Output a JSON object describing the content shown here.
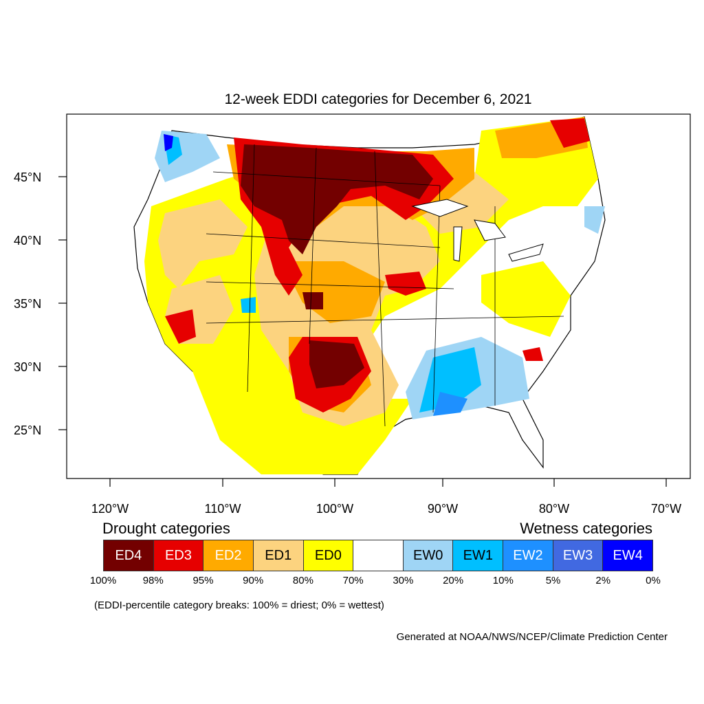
{
  "title": "12-week EDDI categories for December 6, 2021",
  "map": {
    "lat_labels": [
      "45°N",
      "40°N",
      "35°N",
      "30°N",
      "25°N"
    ],
    "lon_labels": [
      "120°W",
      "110°W",
      "100°W",
      "90°W",
      "80°W",
      "70°W"
    ],
    "region": "Contiguous United States"
  },
  "legend": {
    "drought_title": "Drought categories",
    "wetness_title": "Wetness categories",
    "categories": [
      {
        "label": "ED4",
        "color": "#730000",
        "text_color": "#ffffff"
      },
      {
        "label": "ED3",
        "color": "#e60000",
        "text_color": "#ffffff"
      },
      {
        "label": "ED2",
        "color": "#ffaa00",
        "text_color": "#ffffff"
      },
      {
        "label": "ED1",
        "color": "#fcd37f",
        "text_color": "#000000"
      },
      {
        "label": "ED0",
        "color": "#ffff00",
        "text_color": "#000000"
      },
      {
        "label": "",
        "color": "#ffffff",
        "text_color": "#000000"
      },
      {
        "label": "EW0",
        "color": "#9fd5f5",
        "text_color": "#000000"
      },
      {
        "label": "EW1",
        "color": "#00bfff",
        "text_color": "#000000"
      },
      {
        "label": "EW2",
        "color": "#1e90ff",
        "text_color": "#ffffff"
      },
      {
        "label": "EW3",
        "color": "#4169e1",
        "text_color": "#ffffff"
      },
      {
        "label": "EW4",
        "color": "#0000ff",
        "text_color": "#ffffff"
      }
    ],
    "breaks": [
      "100%",
      "98%",
      "95%",
      "90%",
      "80%",
      "70%",
      "30%",
      "20%",
      "10%",
      "5%",
      "2%",
      "0%"
    ]
  },
  "note": "(EDDI-percentile category breaks: 100% = driest; 0% = wettest)",
  "credit": "Generated at NOAA/NWS/NCEP/Climate Prediction Center"
}
